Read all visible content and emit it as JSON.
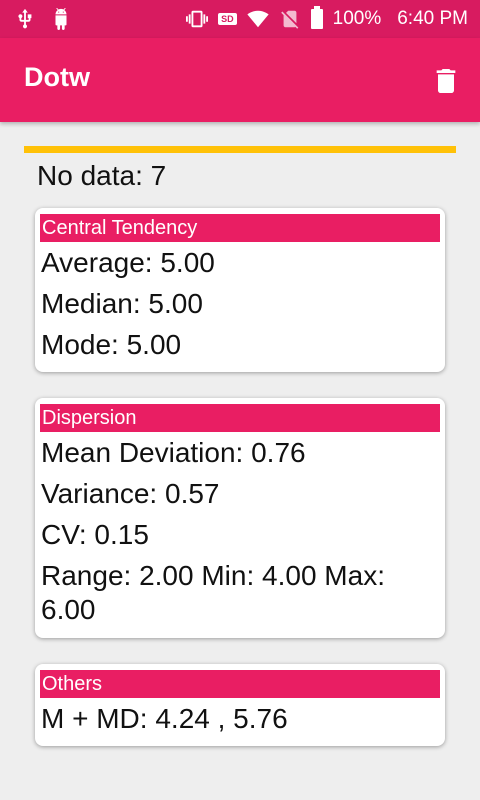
{
  "status_bar": {
    "battery": "100%",
    "time": "6:40 PM",
    "sd_label": "SD"
  },
  "app_bar": {
    "title": "Dotw"
  },
  "summary": {
    "no_data": "No data: 7"
  },
  "central_tendency": {
    "header": "Central Tendency",
    "average": "Average: 5.00",
    "median": "Median: 5.00",
    "mode": "Mode: 5.00"
  },
  "dispersion": {
    "header": "Dispersion",
    "mean_deviation": "Mean Deviation: 0.76",
    "variance": "Variance: 0.57",
    "cv": "CV: 0.15",
    "range": "Range: 2.00 Min: 4.00 Max: 6.00"
  },
  "others": {
    "header": "Others",
    "m_md": "M + MD: 4.24 , 5.76"
  }
}
